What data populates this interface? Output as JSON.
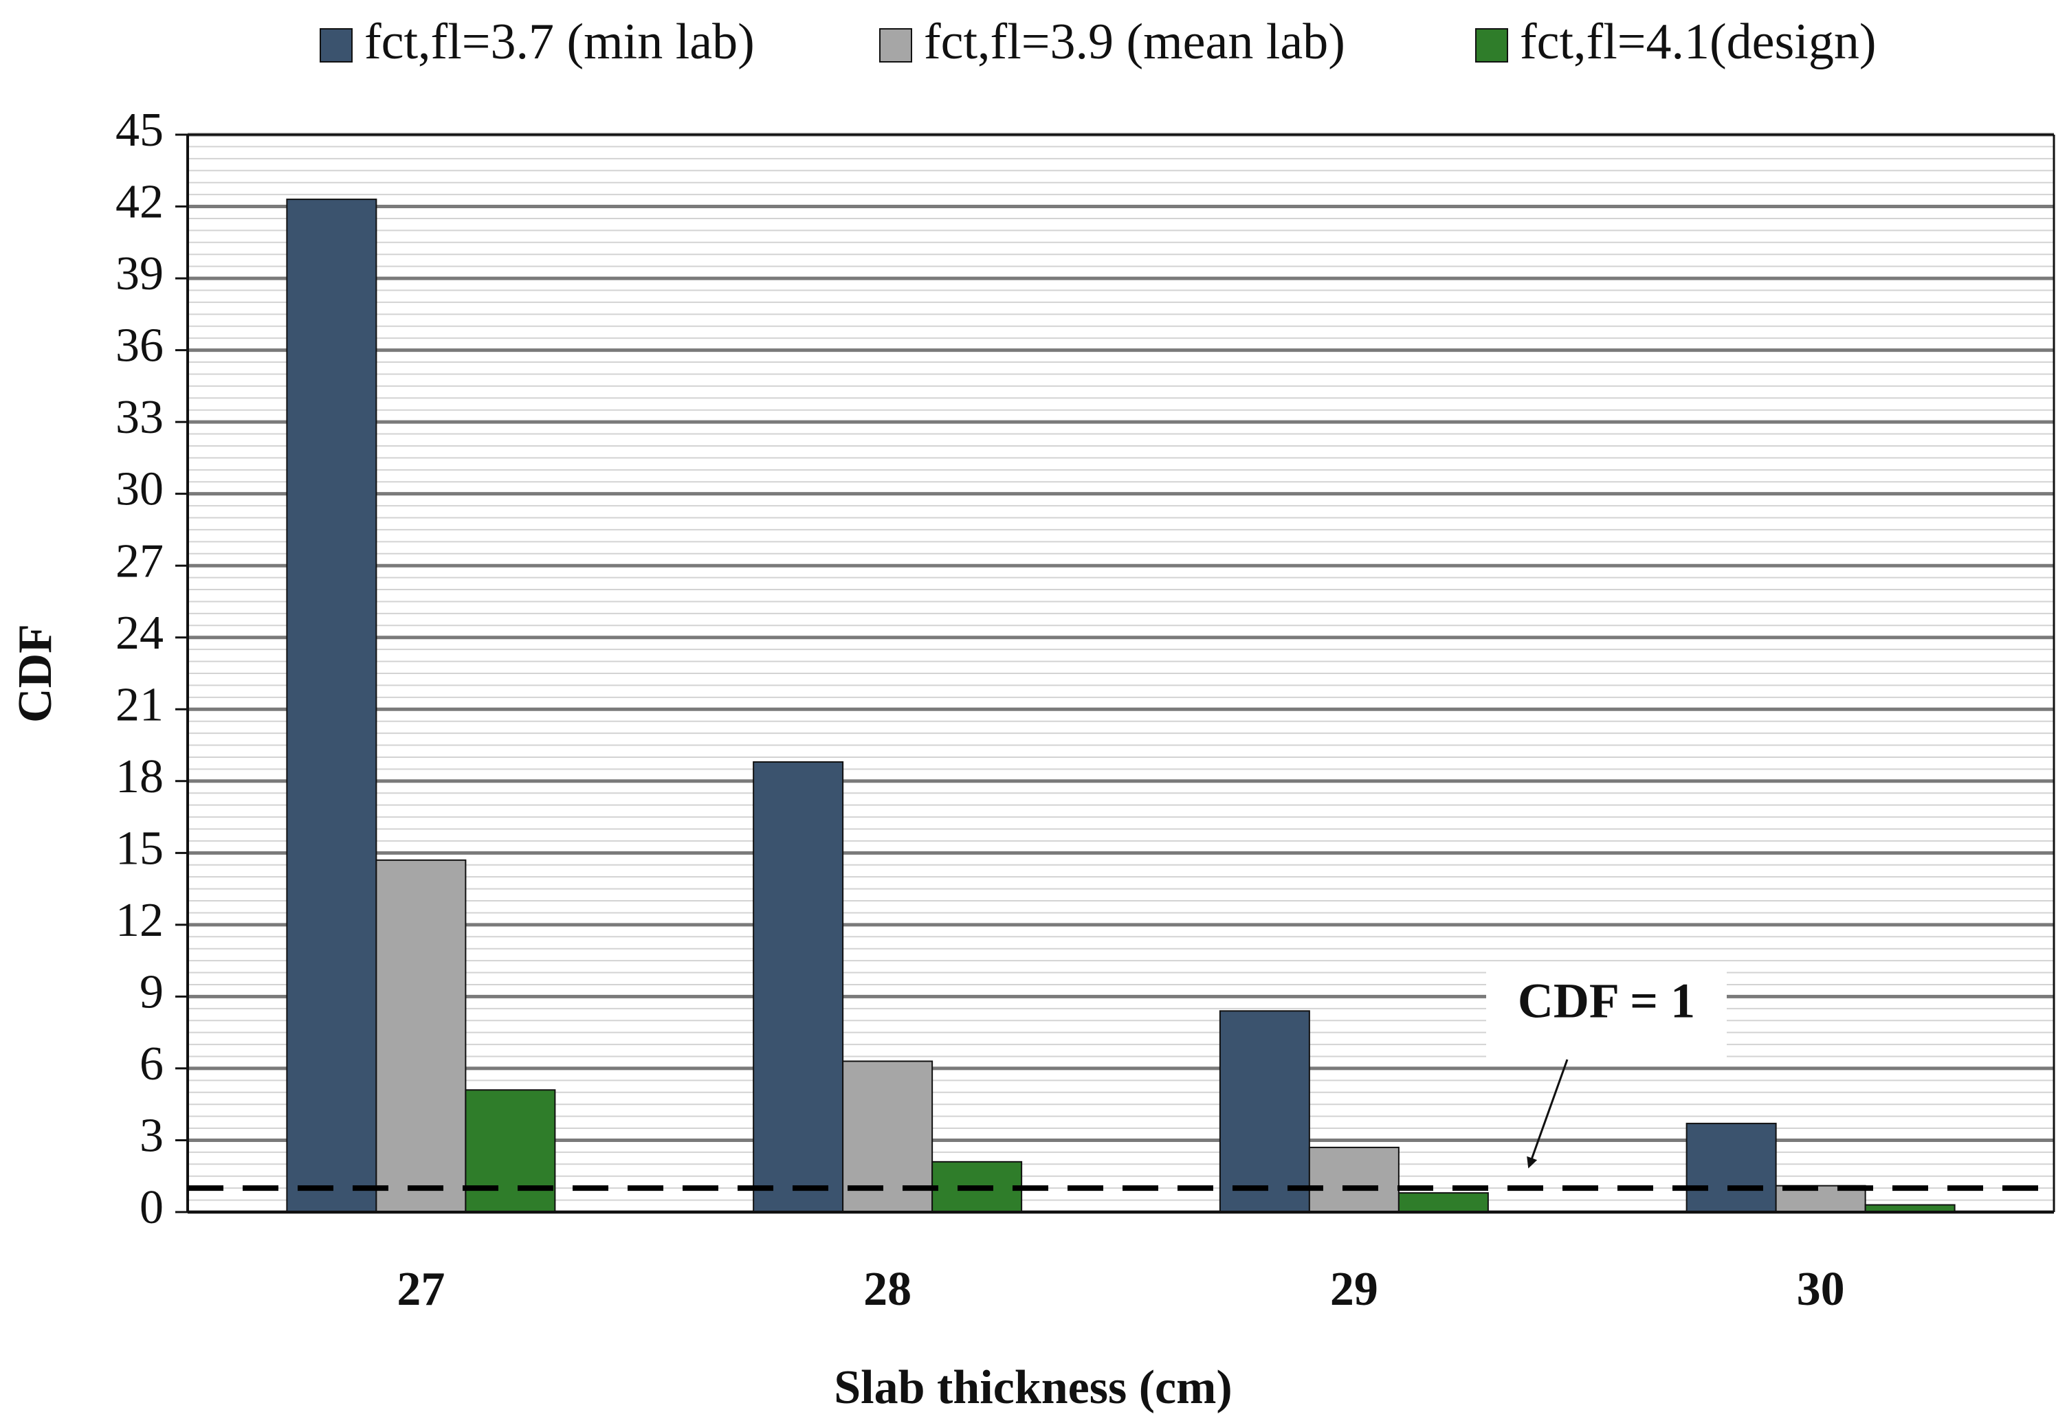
{
  "chart_data": {
    "type": "bar",
    "title": "",
    "xlabel": "Slab thickness (cm)",
    "ylabel": "CDF",
    "categories": [
      "27",
      "28",
      "29",
      "30"
    ],
    "ylim": [
      0,
      45
    ],
    "yticks": [
      "0",
      "3",
      "6",
      "9",
      "12",
      "15",
      "18",
      "21",
      "24",
      "27",
      "30",
      "33",
      "36",
      "39",
      "42",
      "45"
    ],
    "series": [
      {
        "name": "fct,fl=3.7 (min lab)",
        "color": "#3b536e",
        "values": [
          42.3,
          18.8,
          8.4,
          3.7
        ]
      },
      {
        "name": "fct,fl=3.9 (mean lab)",
        "color": "#a6a6a6",
        "values": [
          14.7,
          6.3,
          2.7,
          1.1
        ]
      },
      {
        "name": "fct,fl=4.1(design)",
        "color": "#2f7d2a",
        "values": [
          5.1,
          2.1,
          0.8,
          0.3
        ]
      }
    ],
    "reference_line": {
      "value": 1,
      "label": "CDF = 1",
      "style": "dashed",
      "color": "#000000"
    },
    "legend_position": "top",
    "grid": true
  }
}
